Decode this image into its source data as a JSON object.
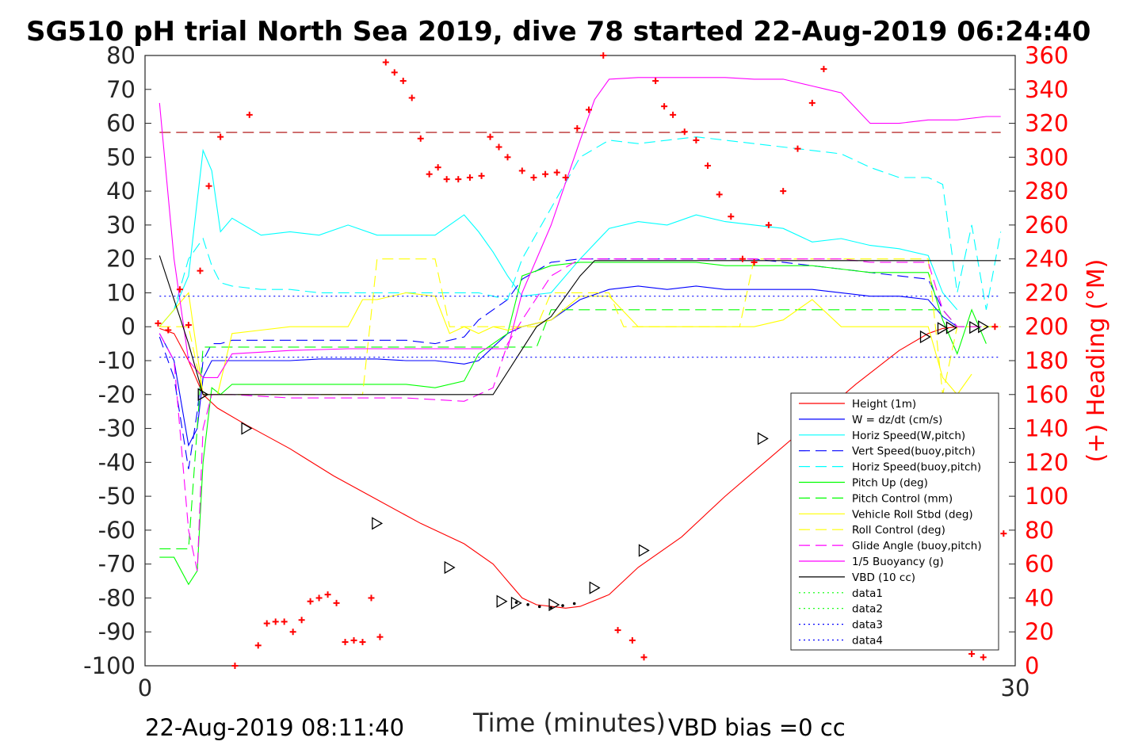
{
  "chart_data": {
    "type": "line",
    "title": "SG510 pH trial North Sea 2019, dive 78 started 22-Aug-2019 06:24:40",
    "xlabel": "Time (minutes)",
    "ylabel_right": "(+) Heading (°M)",
    "footer_left": "22-Aug-2019 08:11:40",
    "footer_right": "VBD bias =0 cc",
    "xlim": [
      0,
      30
    ],
    "ylim": [
      -100,
      80
    ],
    "ylim_right": [
      0,
      360
    ],
    "xticks": [
      0,
      30
    ],
    "yticks": [
      80,
      70,
      60,
      50,
      40,
      30,
      20,
      10,
      0,
      -10,
      -20,
      -30,
      -40,
      -50,
      -60,
      -70,
      -80,
      -90,
      -100
    ],
    "yticks_right": [
      360,
      340,
      320,
      300,
      280,
      260,
      240,
      220,
      200,
      180,
      160,
      140,
      120,
      100,
      80,
      60,
      40,
      20,
      0
    ],
    "grid": false,
    "legend_position": "bottom-right",
    "series": [
      {
        "name": "Height (1m)",
        "color": "#ff0000",
        "style": "solid",
        "x": [
          0.5,
          1.0,
          1.5,
          2.0,
          2.5,
          3.5,
          5.0,
          6.5,
          8.0,
          9.5,
          11.0,
          12.0,
          12.5,
          13.0,
          13.5,
          14.0,
          14.5,
          15.0,
          16.0,
          17.0,
          18.5,
          20.0,
          21.5,
          23.0,
          24.5,
          26.0,
          27.0,
          27.5,
          28.0
        ],
        "y": [
          -0.5,
          -2,
          -10,
          -20,
          -24,
          -29,
          -36,
          -44,
          -51,
          -58,
          -64,
          -70,
          -75,
          -80,
          -82,
          -82.5,
          -83,
          -82.5,
          -79,
          -71,
          -62,
          -50,
          -39,
          -28,
          -17,
          -7,
          -2,
          -0.5,
          0
        ]
      },
      {
        "name": "W = dz/dt (cm/s)",
        "color": "#0000ff",
        "style": "solid",
        "x": [
          0.5,
          1.0,
          1.5,
          1.8,
          2.0,
          2.3,
          2.6,
          3.0,
          4.0,
          5.0,
          6.0,
          7.0,
          8.0,
          9.0,
          10.0,
          11.0,
          11.5,
          12.0,
          12.5,
          13.0,
          14.0,
          15.0,
          16.0,
          17.0,
          18.0,
          19.0,
          20.0,
          21.0,
          22.0,
          23.0,
          24.0,
          25.0,
          26.0,
          27.0,
          27.5,
          28.0
        ],
        "y": [
          -2,
          -10,
          -35,
          -30,
          -15,
          -10,
          -10,
          -10,
          -10,
          -10,
          -9.5,
          -9.5,
          -9.5,
          -10,
          -10,
          -11,
          -10,
          -6,
          -2,
          0,
          2,
          8,
          11,
          12,
          11,
          12,
          11,
          11,
          11,
          11,
          10,
          9,
          9,
          8,
          3,
          0
        ]
      },
      {
        "name": "Horiz Speed(W,pitch)",
        "color": "#00ffff",
        "style": "solid",
        "x": [
          0.5,
          1.0,
          1.5,
          2.0,
          2.3,
          2.6,
          3.0,
          4.0,
          5.0,
          6.0,
          7.0,
          8.0,
          9.0,
          10.0,
          11.0,
          11.5,
          12.0,
          12.5,
          13.0,
          14.0,
          15.0,
          16.0,
          17.0,
          18.0,
          19.0,
          20.0,
          21.0,
          22.0,
          23.0,
          24.0,
          25.0,
          26.0,
          27.0,
          27.5,
          28.0
        ],
        "y": [
          0,
          5,
          15,
          52,
          46,
          28,
          32,
          27,
          28,
          27,
          30,
          27,
          27,
          27,
          33,
          28,
          22,
          15,
          9,
          10,
          20,
          29,
          31,
          30,
          33,
          31,
          30,
          29,
          25,
          26,
          24,
          23,
          21,
          10,
          5
        ]
      },
      {
        "name": "Vert Speed(buoy,pitch)",
        "color": "#0000ff",
        "style": "dashed",
        "x": [
          0.5,
          1.0,
          1.5,
          1.8,
          2.0,
          2.3,
          2.6,
          3.0,
          4.0,
          5.0,
          6.0,
          7.0,
          8.0,
          9.0,
          10.0,
          11.0,
          11.5,
          12.0,
          12.5,
          13.0,
          14.0,
          15.0,
          16.0,
          17.0,
          18.0,
          19.0,
          20.0,
          21.0,
          22.0,
          23.0,
          24.0,
          25.0,
          26.0,
          27.0,
          27.5,
          28.0
        ],
        "y": [
          -3,
          -15,
          -42,
          -25,
          -10,
          -5,
          -5,
          -4,
          -4,
          -4,
          -4,
          -4,
          -4,
          -4,
          -5,
          -3,
          2,
          5,
          8,
          14,
          19,
          20,
          20,
          20,
          20,
          20,
          20,
          20,
          19,
          18,
          17,
          16,
          15,
          14,
          5,
          0
        ]
      },
      {
        "name": "Horiz Speed(buoy,pitch)",
        "color": "#00ffff",
        "style": "dashed",
        "x": [
          0.5,
          1.0,
          1.5,
          2.0,
          2.3,
          2.6,
          3.0,
          4.0,
          5.0,
          6.0,
          7.0,
          8.0,
          9.0,
          10.0,
          11.0,
          11.5,
          12.0,
          12.5,
          13.0,
          14.0,
          15.0,
          16.0,
          17.0,
          18.0,
          19.0,
          20.0,
          21.0,
          22.0,
          23.0,
          24.0,
          25.0,
          26.0,
          27.0,
          27.5,
          28.0,
          28.5,
          29.0,
          29.5
        ],
        "y": [
          0,
          5,
          20,
          26,
          18,
          13,
          12,
          11,
          11,
          10,
          10,
          10,
          10,
          10,
          10,
          10,
          9,
          8,
          20,
          35,
          50,
          55,
          54,
          55,
          56,
          55,
          54,
          53,
          52,
          51,
          47,
          44,
          44,
          42,
          10,
          30,
          5,
          28
        ]
      },
      {
        "name": "Pitch Up (deg)",
        "color": "#00ff00",
        "style": "solid",
        "x": [
          0.5,
          1.0,
          1.5,
          1.8,
          2.0,
          2.3,
          2.6,
          3.0,
          4.0,
          5.0,
          6.0,
          7.0,
          8.0,
          9.0,
          10.0,
          11.0,
          11.5,
          12.0,
          12.5,
          13.0,
          14.0,
          15.0,
          16.0,
          17.0,
          18.0,
          19.0,
          20.0,
          21.0,
          22.0,
          23.0,
          24.0,
          25.0,
          26.0,
          27.0,
          27.5,
          28.0,
          28.5,
          29.0
        ],
        "y": [
          -68,
          -68,
          -76,
          -72,
          -40,
          -18,
          -20,
          -17,
          -17,
          -17,
          -17,
          -17,
          -17,
          -17,
          -18,
          -16,
          -8,
          -5,
          -2,
          15,
          18,
          19,
          19,
          19,
          19,
          19,
          18,
          18,
          18,
          18,
          17,
          16,
          16,
          16,
          2,
          -8,
          5,
          -5
        ]
      },
      {
        "name": "Pitch Control (mm)",
        "color": "#00ff00",
        "style": "dashed",
        "x": [
          0.5,
          1.5,
          2.0,
          2.5,
          11.5,
          12.0,
          13.5,
          14.0,
          27.5,
          28.0,
          29.5
        ],
        "y": [
          -65.5,
          -65.5,
          -6,
          -6,
          -6,
          -6,
          -6,
          5,
          5,
          0,
          0
        ]
      },
      {
        "name": "Vehicle Roll Stbd (deg)",
        "color": "#ffff00",
        "style": "solid",
        "x": [
          0.5,
          1.0,
          1.5,
          2.0,
          2.5,
          3.0,
          4.0,
          5.0,
          6.0,
          7.0,
          7.5,
          8.0,
          9.0,
          10.0,
          10.5,
          11.0,
          11.5,
          12.0,
          12.5,
          13.0,
          14.0,
          15.0,
          16.0,
          17.0,
          18.0,
          19.0,
          20.0,
          21.0,
          22.0,
          23.0,
          24.0,
          25.0,
          26.0,
          27.0,
          27.5,
          28.0,
          28.5
        ],
        "y": [
          0,
          5,
          10,
          -20,
          -20,
          -2,
          -1,
          0,
          0,
          0,
          8,
          8,
          10,
          9,
          -2,
          0,
          -2,
          0,
          -1,
          0,
          2,
          9,
          9,
          0,
          0,
          0,
          0,
          0,
          2,
          8,
          0,
          0,
          0,
          0,
          -15,
          -20,
          -14
        ]
      },
      {
        "name": "Roll Control (deg)",
        "color": "#ffff00",
        "style": "dashed",
        "x": [
          0.5,
          1.5,
          2.0,
          7.5,
          8.0,
          10.0,
          10.5,
          13.5,
          14.0,
          16.0,
          16.5,
          20.5,
          21.0,
          27.0,
          27.5,
          28.0,
          29.5
        ],
        "y": [
          0,
          0,
          -20,
          -20,
          20,
          20,
          0,
          0,
          10,
          10,
          0,
          0,
          20,
          20,
          -20,
          0,
          0
        ]
      },
      {
        "name": "Glide Angle (buoy,pitch)",
        "color": "#ff00ff",
        "style": "dashed",
        "x": [
          0.5,
          1.0,
          1.5,
          1.8,
          2.0,
          2.3,
          2.6,
          3.0,
          5.0,
          7.0,
          9.0,
          11.0,
          11.5,
          12.0,
          12.5,
          13.0,
          14.0,
          15.0,
          16.0,
          17.0,
          18.0,
          19.0,
          20.0,
          21.0,
          22.0,
          23.0,
          24.0,
          25.0,
          26.0,
          27.0,
          27.5,
          28.0,
          29.0
        ],
        "y": [
          -2,
          -10,
          -60,
          -72,
          -30,
          -20,
          -20,
          -20,
          -21,
          -21,
          -21,
          -22,
          -20,
          -18,
          -5,
          2,
          15,
          20,
          20,
          20,
          20,
          20,
          20,
          20,
          20,
          20,
          20,
          19,
          19,
          19,
          5,
          0,
          0
        ]
      },
      {
        "name": "1/5 Buoyancy (g)",
        "color": "#ff00ff",
        "style": "solid",
        "x": [
          0.5,
          1.0,
          1.5,
          2.0,
          2.5,
          3.0,
          5.0,
          7.0,
          9.0,
          11.0,
          12.0,
          12.5,
          13.0,
          14.0,
          15.0,
          15.5,
          16.0,
          17.0,
          18.0,
          19.0,
          20.0,
          21.0,
          22.0,
          23.0,
          23.5,
          24.0,
          25.0,
          26.0,
          27.0,
          27.5,
          28.0,
          29.0,
          29.5
        ],
        "y": [
          66,
          20,
          -10,
          -15,
          -15,
          -8,
          -7,
          -6.5,
          -6.5,
          -6.5,
          -6.5,
          -6.5,
          10,
          30,
          55,
          67,
          73,
          73.5,
          73.5,
          73.5,
          73.5,
          73,
          73,
          71,
          70,
          69,
          60,
          60,
          61,
          61,
          61,
          62,
          62
        ]
      },
      {
        "name": "VBD (10 cc)",
        "color": "#000000",
        "style": "solid",
        "x": [
          0.5,
          1.5,
          2.0,
          11.5,
          12.0,
          13.5,
          14.0,
          15.0,
          15.5,
          27.0,
          27.5,
          28.0,
          29.5
        ],
        "y": [
          21,
          -5,
          -20,
          -20,
          -20,
          0,
          3,
          15,
          19.5,
          19.5,
          19.5,
          19.5,
          19.5
        ]
      },
      {
        "name": "data1",
        "color": "#00ff00",
        "style": "dotted",
        "x": [],
        "y": []
      },
      {
        "name": "data2",
        "color": "#00ff00",
        "style": "dotted",
        "x": [],
        "y": []
      },
      {
        "name": "data3",
        "color": "#0000ff",
        "style": "dotted",
        "x": [
          0.5,
          29.5
        ],
        "y": [
          9,
          9
        ]
      },
      {
        "name": "data4",
        "color": "#0000ff",
        "style": "dotted",
        "x": [
          0.5,
          29.5
        ],
        "y": [
          -9,
          -9
        ]
      }
    ],
    "reference_line": {
      "color": "#aa0000",
      "style": "dashed",
      "x": [
        0.5,
        29.5
      ],
      "y": [
        57.3,
        57.3
      ]
    },
    "heading_points": {
      "color": "#ff0000",
      "x": [
        0.45,
        0.8,
        1.2,
        1.5,
        1.9,
        2.2,
        2.6,
        3.1,
        3.6,
        3.9,
        4.2,
        4.5,
        4.8,
        5.1,
        5.4,
        5.7,
        6.0,
        6.3,
        6.6,
        6.9,
        7.2,
        7.5,
        7.8,
        8.1,
        8.3,
        8.6,
        8.9,
        9.2,
        9.5,
        9.8,
        10.1,
        10.4,
        10.8,
        11.2,
        11.6,
        11.9,
        12.2,
        12.5,
        13.0,
        13.4,
        13.8,
        14.2,
        14.5,
        14.9,
        15.3,
        15.8,
        16.3,
        16.8,
        17.2,
        17.6,
        17.9,
        18.2,
        18.6,
        19.0,
        19.4,
        19.8,
        20.2,
        20.6,
        21.0,
        21.5,
        22.0,
        22.5,
        23.0,
        23.4,
        28.5,
        28.9,
        29.3,
        29.6
      ],
      "y": [
        202,
        198,
        222,
        201,
        233,
        283,
        312,
        0,
        325,
        12,
        25,
        26,
        26,
        20,
        27,
        38,
        40,
        42,
        37,
        14,
        15,
        14,
        40,
        17,
        356,
        350,
        345,
        335,
        311,
        290,
        294,
        287,
        287,
        288,
        289,
        312,
        306,
        300,
        292,
        288,
        290,
        291,
        288,
        317,
        328,
        360,
        21,
        15,
        5,
        345,
        330,
        325,
        315,
        310,
        295,
        278,
        265,
        240,
        238,
        260,
        280,
        305,
        332,
        352,
        7,
        5,
        200,
        78
      ]
    },
    "glider_markers": {
      "color": "#000000",
      "x": [
        2.0,
        3.5,
        8.0,
        10.5,
        12.3,
        12.8,
        14.1,
        15.5,
        17.2,
        21.3,
        26.9,
        27.5,
        27.8,
        28.6,
        28.9
      ],
      "y": [
        -20,
        -30,
        -58,
        -71,
        -81,
        -81.5,
        -82,
        -77,
        -66,
        -33,
        -3,
        -0.5,
        -0.3,
        -0.2,
        0
      ]
    }
  }
}
